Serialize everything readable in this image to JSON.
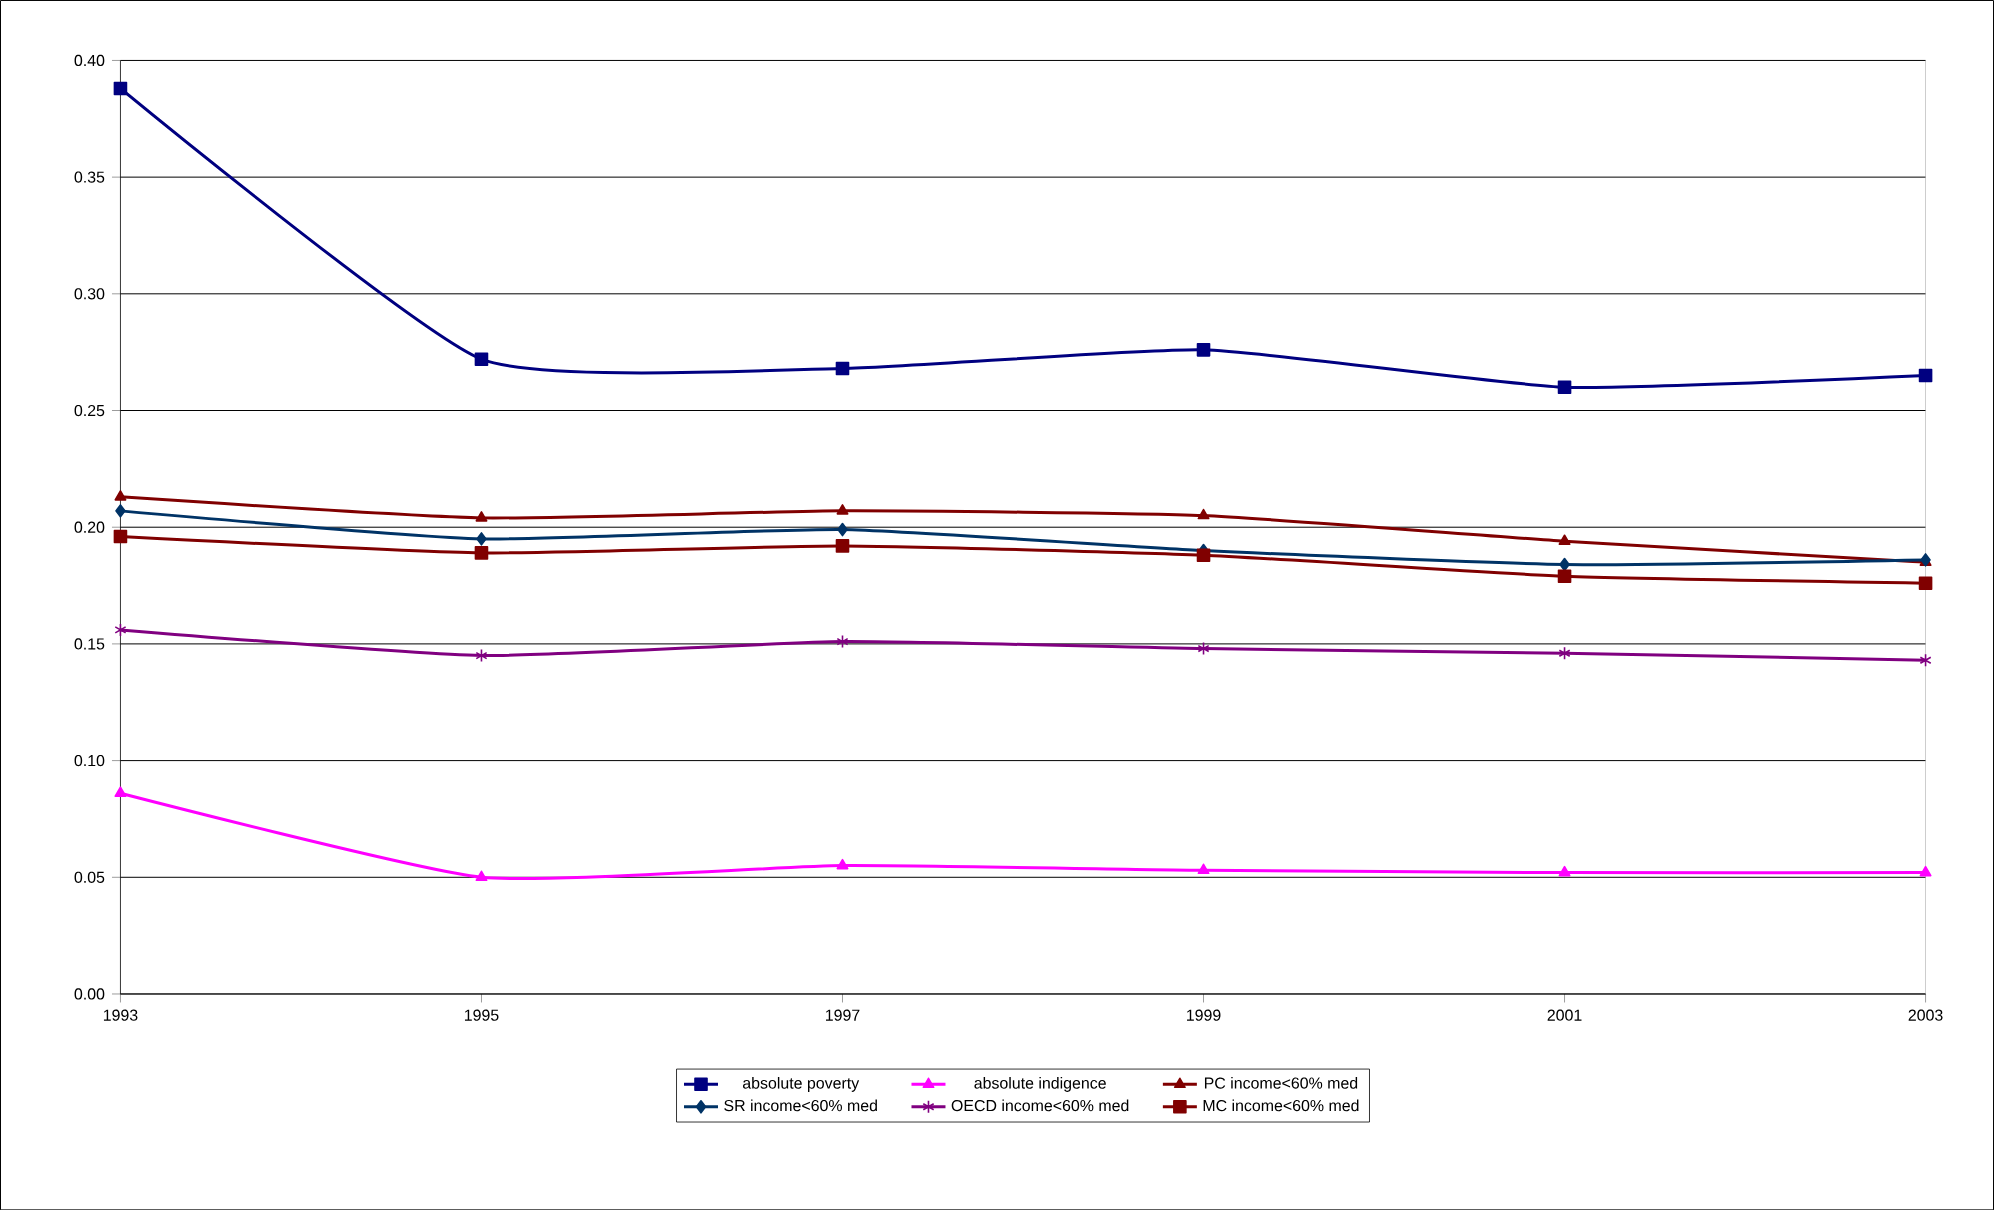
{
  "chart_data": {
    "type": "line",
    "x": [
      1993,
      1995,
      1997,
      1999,
      2001,
      2003
    ],
    "xlim": [
      1993,
      2003
    ],
    "xticks": [
      1993,
      1995,
      1997,
      1999,
      2001,
      2003
    ],
    "ylim": [
      0,
      0.4
    ],
    "yticks": [
      {
        "value": 0,
        "label": "0.00"
      },
      {
        "value": 0.05,
        "label": "0.05"
      },
      {
        "value": 0.1,
        "label": "0.10"
      },
      {
        "value": 0.15,
        "label": "0.15"
      },
      {
        "value": 0.2,
        "label": "0.20"
      },
      {
        "value": 0.25,
        "label": "0.25"
      },
      {
        "value": 0.3,
        "label": "0.30"
      },
      {
        "value": 0.35,
        "label": "0.35"
      },
      {
        "value": 0.4,
        "label": "0.40"
      }
    ],
    "grid": "y",
    "legend": "bottom",
    "series": [
      {
        "name": "absolute poverty",
        "color": "#000080",
        "marker": "square",
        "values": [
          0.388,
          0.272,
          0.268,
          0.276,
          0.26,
          0.265
        ]
      },
      {
        "name": "absolute indigence",
        "color": "#ff00ff",
        "marker": "triangle",
        "values": [
          0.086,
          0.05,
          0.055,
          0.053,
          0.052,
          0.052
        ]
      },
      {
        "name": "PC income<60% med",
        "color": "#800000",
        "marker": "triangle",
        "values": [
          0.213,
          0.204,
          0.207,
          0.205,
          0.194,
          0.185
        ]
      },
      {
        "name": "SR income<60% med",
        "color": "#003366",
        "marker": "diamond",
        "values": [
          0.207,
          0.195,
          0.199,
          0.19,
          0.184,
          0.186
        ]
      },
      {
        "name": "OECD income<60% med",
        "color": "#800080",
        "marker": "cross",
        "values": [
          0.156,
          0.145,
          0.151,
          0.148,
          0.146,
          0.143
        ]
      },
      {
        "name": "MC income<60% med",
        "color": "#800000",
        "marker": "square",
        "values": [
          0.196,
          0.189,
          0.192,
          0.188,
          0.179,
          0.176
        ]
      }
    ]
  }
}
